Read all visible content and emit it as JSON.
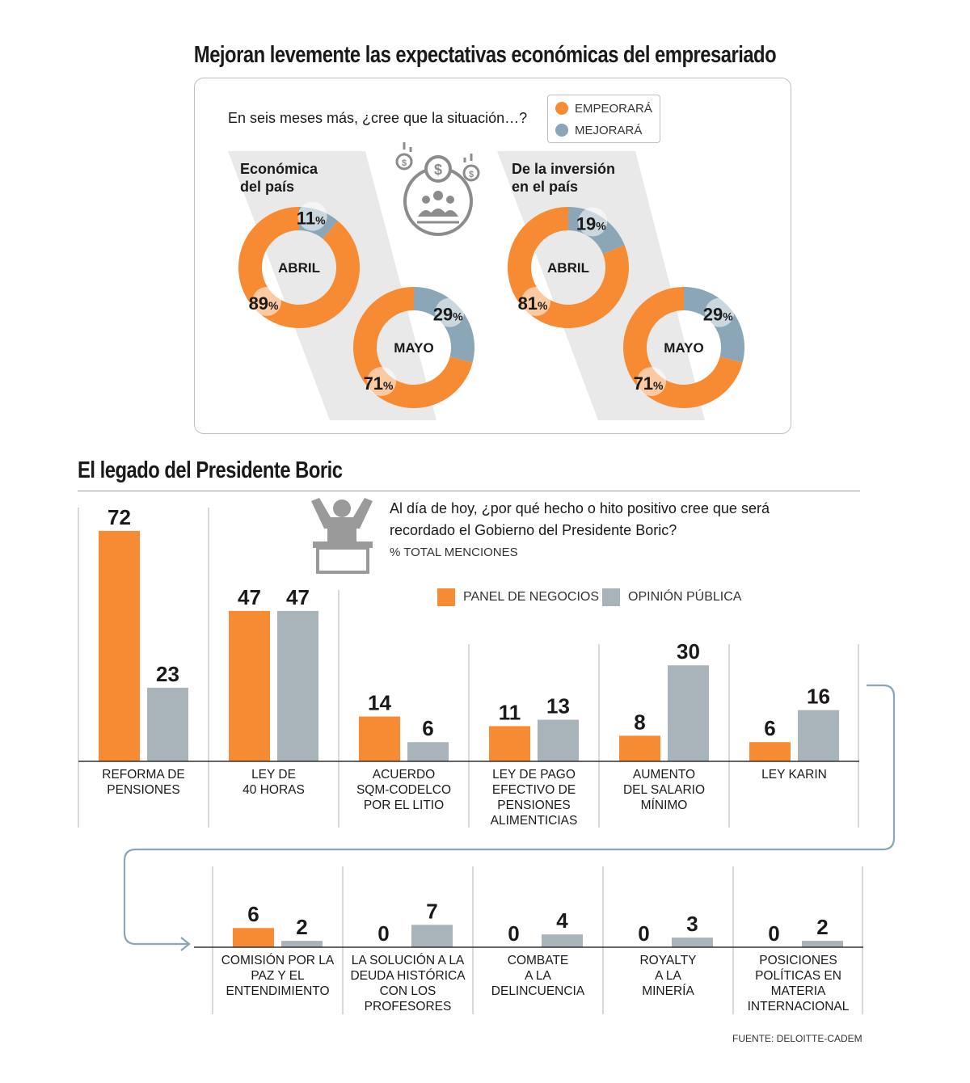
{
  "top": {
    "title": "Mejoran levemente las expectativas económicas del empresariado",
    "question": "En seis meses más, ¿cree que la situación…?",
    "legend": [
      {
        "label": "EMPEORARÁ",
        "color": "#f68b33"
      },
      {
        "label": "MEJORARÁ",
        "color": "#8aa6b7"
      }
    ],
    "percent_sign": "%"
  },
  "chart_data": [
    {
      "type": "pie",
      "title": "Económica del país",
      "title_lines": [
        "Económica",
        "del país"
      ],
      "donuts": [
        {
          "label": "ABRIL",
          "slices": [
            {
              "name": "EMPEORARÁ",
              "value": 89
            },
            {
              "name": "MEJORARÁ",
              "value": 11
            }
          ]
        },
        {
          "label": "MAYO",
          "slices": [
            {
              "name": "EMPEORARÁ",
              "value": 71
            },
            {
              "name": "MEJORARÁ",
              "value": 29
            }
          ]
        }
      ]
    },
    {
      "type": "pie",
      "title": "De la inversión en el país",
      "title_lines": [
        "De la inversión",
        "en el país"
      ],
      "donuts": [
        {
          "label": "ABRIL",
          "slices": [
            {
              "name": "EMPEORARÁ",
              "value": 81
            },
            {
              "name": "MEJORARÁ",
              "value": 19
            }
          ]
        },
        {
          "label": "MAYO",
          "slices": [
            {
              "name": "EMPEORARÁ",
              "value": 71
            },
            {
              "name": "MEJORARÁ",
              "value": 29
            }
          ]
        }
      ]
    },
    {
      "type": "bar",
      "title": "El legado del Presidente Boric",
      "question": "Al día de hoy, ¿por qué hecho o hito positivo cree que será recordado el Gobierno del Presidente Boric?",
      "ylabel": "% TOTAL MENCIONES",
      "categories": [
        [
          "REFORMA DE",
          "PENSIONES"
        ],
        [
          "LEY DE",
          "40 HORAS"
        ],
        [
          "ACUERDO",
          "SQM-CODELCO",
          "POR EL LITIO"
        ],
        [
          "LEY DE PAGO",
          "EFECTIVO DE",
          "PENSIONES",
          "ALIMENTICIAS"
        ],
        [
          "AUMENTO",
          "DEL SALARIO",
          "MÍNIMO"
        ],
        [
          "LEY KARIN"
        ],
        [
          "COMISIÓN POR LA",
          "PAZ Y EL",
          "ENTENDIMIENTO"
        ],
        [
          "LA SOLUCIÓN A LA",
          "DEUDA HISTÓRICA",
          "CON LOS",
          "PROFESORES"
        ],
        [
          "COMBATE",
          "A LA",
          "DELINCUENCIA"
        ],
        [
          "ROYALTY",
          "A LA",
          "MINERÍA"
        ],
        [
          "POSICIONES",
          "POLÍTICAS EN",
          "MATERIA",
          "INTERNACIONAL"
        ]
      ],
      "series": [
        {
          "name": "PANEL DE NEGOCIOS",
          "color": "#f68b33",
          "values": [
            72,
            47,
            14,
            11,
            8,
            6,
            6,
            0,
            0,
            0,
            0
          ]
        },
        {
          "name": "OPINIÓN PÚBLICA",
          "color": "#a9b4ba",
          "values": [
            23,
            47,
            6,
            13,
            30,
            16,
            2,
            7,
            4,
            3,
            2
          ]
        }
      ],
      "source": "FUENTE: DELOITTE-CADEM"
    }
  ]
}
